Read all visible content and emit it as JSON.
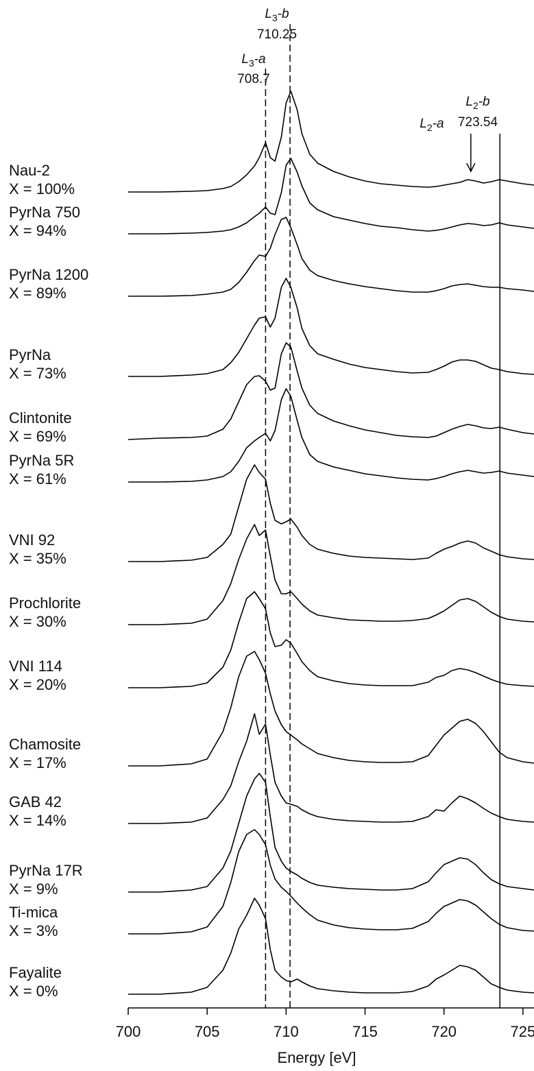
{
  "chart_data": {
    "type": "line",
    "x_label": "Energy [eV]",
    "xlim": [
      700,
      725.7
    ],
    "xticks": [
      700,
      705,
      710,
      715,
      720,
      725
    ],
    "color": "#000000",
    "x": [
      700,
      702,
      704,
      705,
      706,
      706.5,
      707,
      707.5,
      708,
      708.3,
      708.7,
      709,
      709.3,
      709.7,
      710,
      710.3,
      710.7,
      711,
      711.5,
      712,
      713,
      714,
      715,
      716,
      717,
      718,
      719,
      719.5,
      720,
      720.5,
      721,
      721.5,
      722,
      722.5,
      723,
      723.5,
      724,
      725,
      725.7
    ],
    "reference_lines": [
      {
        "label": {
          "base": "L",
          "sub": "3",
          "suffix": "-a"
        },
        "value": 708.7,
        "style": "dashed"
      },
      {
        "label": {
          "base": "L",
          "sub": "3",
          "suffix": "-b"
        },
        "value": 710.25,
        "style": "dashed"
      },
      {
        "label": {
          "base": "L",
          "sub": "2",
          "suffix": "-a"
        },
        "value": 721.7,
        "style": "arrow"
      },
      {
        "label": {
          "base": "L",
          "sub": "2",
          "suffix": "-b"
        },
        "value": 723.54,
        "style": "solid"
      }
    ],
    "series": [
      {
        "name": "Nau-2",
        "composition": "X = 100%",
        "values": [
          0,
          0,
          0.01,
          0.02,
          0.05,
          0.08,
          0.15,
          0.25,
          0.38,
          0.5,
          0.72,
          0.5,
          0.45,
          0.8,
          1.3,
          1.47,
          1.2,
          0.85,
          0.55,
          0.42,
          0.3,
          0.22,
          0.16,
          0.12,
          0.1,
          0.08,
          0.07,
          0.08,
          0.1,
          0.12,
          0.14,
          0.18,
          0.16,
          0.13,
          0.15,
          0.18,
          0.16,
          0.12,
          0.1
        ]
      },
      {
        "name": "PyrNa 750",
        "composition": "X = 94%",
        "values": [
          0,
          0,
          0.01,
          0.02,
          0.04,
          0.06,
          0.1,
          0.16,
          0.25,
          0.3,
          0.39,
          0.3,
          0.28,
          0.6,
          1.0,
          1.1,
          0.9,
          0.7,
          0.45,
          0.35,
          0.25,
          0.2,
          0.15,
          0.11,
          0.09,
          0.06,
          0.04,
          0.05,
          0.07,
          0.1,
          0.13,
          0.15,
          0.14,
          0.12,
          0.13,
          0.16,
          0.13,
          0.1,
          0.08
        ]
      },
      {
        "name": "PyrNa 1200",
        "composition": "X = 89%",
        "values": [
          0,
          0,
          0.01,
          0.03,
          0.06,
          0.1,
          0.2,
          0.35,
          0.52,
          0.6,
          0.58,
          0.7,
          0.9,
          1.12,
          1.15,
          1.0,
          0.75,
          0.55,
          0.38,
          0.3,
          0.23,
          0.18,
          0.14,
          0.11,
          0.08,
          0.06,
          0.06,
          0.08,
          0.11,
          0.15,
          0.17,
          0.18,
          0.16,
          0.14,
          0.13,
          0.13,
          0.11,
          0.09,
          0.07
        ]
      },
      {
        "name": "PyrNa",
        "composition": "X = 73%",
        "values": [
          0,
          0,
          0.02,
          0.04,
          0.1,
          0.2,
          0.35,
          0.55,
          0.75,
          0.85,
          0.87,
          0.72,
          0.85,
          1.3,
          1.43,
          1.3,
          1.0,
          0.7,
          0.45,
          0.33,
          0.25,
          0.18,
          0.13,
          0.1,
          0.07,
          0.05,
          0.06,
          0.1,
          0.15,
          0.21,
          0.24,
          0.24,
          0.22,
          0.17,
          0.12,
          0.1,
          0.07,
          0.04,
          0.03
        ]
      },
      {
        "name": "Clintonite",
        "composition": "X = 69%",
        "values": [
          0,
          0.02,
          0.03,
          0.05,
          0.15,
          0.3,
          0.55,
          0.8,
          0.92,
          0.93,
          0.85,
          0.72,
          0.75,
          1.25,
          1.41,
          1.35,
          1.0,
          0.75,
          0.5,
          0.38,
          0.27,
          0.2,
          0.14,
          0.1,
          0.06,
          0.04,
          0.03,
          0.05,
          0.1,
          0.15,
          0.19,
          0.22,
          0.2,
          0.17,
          0.16,
          0.18,
          0.15,
          0.1,
          0.08
        ]
      },
      {
        "name": "PyrNa 5R",
        "composition": "X = 61%",
        "values": [
          0,
          0,
          0.01,
          0.03,
          0.08,
          0.15,
          0.3,
          0.5,
          0.6,
          0.65,
          0.71,
          0.6,
          0.75,
          1.2,
          1.36,
          1.25,
          0.9,
          0.65,
          0.4,
          0.3,
          0.22,
          0.17,
          0.12,
          0.09,
          0.06,
          0.04,
          0.03,
          0.05,
          0.08,
          0.12,
          0.15,
          0.17,
          0.15,
          0.13,
          0.14,
          0.16,
          0.13,
          0.1,
          0.08
        ]
      },
      {
        "name": "VNI 92",
        "composition": "X = 35%",
        "values": [
          0,
          0,
          0.02,
          0.06,
          0.25,
          0.4,
          0.8,
          1.2,
          1.41,
          1.3,
          1.2,
          0.85,
          0.6,
          0.55,
          0.58,
          0.62,
          0.5,
          0.38,
          0.25,
          0.18,
          0.12,
          0.08,
          0.06,
          0.05,
          0.04,
          0.03,
          0.05,
          0.12,
          0.18,
          0.22,
          0.27,
          0.3,
          0.27,
          0.2,
          0.15,
          0.1,
          0.07,
          0.04,
          0.03
        ]
      },
      {
        "name": "Prochlorite",
        "composition": "X = 30%",
        "values": [
          0,
          0,
          0.02,
          0.08,
          0.35,
          0.6,
          0.95,
          1.25,
          1.46,
          1.3,
          1.38,
          1.0,
          0.65,
          0.45,
          0.45,
          0.48,
          0.38,
          0.3,
          0.2,
          0.14,
          0.1,
          0.07,
          0.06,
          0.05,
          0.05,
          0.06,
          0.09,
          0.14,
          0.2,
          0.28,
          0.36,
          0.38,
          0.34,
          0.26,
          0.18,
          0.12,
          0.08,
          0.05,
          0.04
        ]
      },
      {
        "name": "VNI 114",
        "composition": "X = 20%",
        "values": [
          0,
          0,
          0.02,
          0.07,
          0.3,
          0.55,
          0.95,
          1.3,
          1.4,
          1.3,
          1.15,
          0.8,
          0.6,
          0.62,
          0.7,
          0.65,
          0.5,
          0.38,
          0.25,
          0.16,
          0.1,
          0.06,
          0.04,
          0.03,
          0.03,
          0.03,
          0.08,
          0.15,
          0.18,
          0.25,
          0.28,
          0.26,
          0.22,
          0.17,
          0.12,
          0.08,
          0.05,
          0.03,
          0.02
        ]
      },
      {
        "name": "Chamosite",
        "composition": "X = 17%",
        "values": [
          0,
          0,
          0.03,
          0.1,
          0.5,
          0.85,
          1.3,
          1.6,
          1.67,
          1.55,
          1.35,
          1.05,
          0.8,
          0.6,
          0.5,
          0.45,
          0.38,
          0.32,
          0.25,
          0.18,
          0.12,
          0.08,
          0.06,
          0.05,
          0.05,
          0.06,
          0.15,
          0.3,
          0.45,
          0.55,
          0.65,
          0.68,
          0.62,
          0.5,
          0.35,
          0.2,
          0.12,
          0.06,
          0.04
        ]
      },
      {
        "name": "GAB 42",
        "composition": "X = 14%",
        "values": [
          0,
          0,
          0.02,
          0.08,
          0.35,
          0.55,
          0.9,
          1.2,
          1.6,
          1.3,
          1.45,
          1.0,
          0.6,
          0.4,
          0.3,
          0.28,
          0.25,
          0.2,
          0.14,
          0.1,
          0.06,
          0.04,
          0.03,
          0.02,
          0.02,
          0.03,
          0.1,
          0.2,
          0.18,
          0.3,
          0.4,
          0.36,
          0.3,
          0.22,
          0.15,
          0.1,
          0.06,
          0.03,
          0.02
        ]
      },
      {
        "name": "PyrNa 17R",
        "composition": "X = 9%",
        "values": [
          0,
          0,
          0.03,
          0.08,
          0.35,
          0.6,
          1.0,
          1.4,
          1.65,
          1.73,
          1.6,
          1.1,
          0.65,
          0.45,
          0.35,
          0.3,
          0.25,
          0.2,
          0.14,
          0.1,
          0.07,
          0.05,
          0.04,
          0.03,
          0.03,
          0.05,
          0.15,
          0.28,
          0.4,
          0.45,
          0.5,
          0.48,
          0.4,
          0.28,
          0.18,
          0.12,
          0.08,
          0.05,
          0.03
        ]
      },
      {
        "name": "Ti-mica",
        "composition": "X = 3%",
        "values": [
          0,
          0,
          0.03,
          0.1,
          0.4,
          0.75,
          1.2,
          1.45,
          1.52,
          1.45,
          1.3,
          1.0,
          0.8,
          0.68,
          0.62,
          0.55,
          0.45,
          0.38,
          0.28,
          0.2,
          0.13,
          0.09,
          0.07,
          0.06,
          0.06,
          0.08,
          0.18,
          0.3,
          0.4,
          0.45,
          0.5,
          0.48,
          0.42,
          0.32,
          0.22,
          0.14,
          0.09,
          0.05,
          0.04
        ]
      },
      {
        "name": "Fayalite",
        "composition": "X = 0%",
        "values": [
          0,
          0,
          0.03,
          0.1,
          0.35,
          0.6,
          0.95,
          1.15,
          1.4,
          1.3,
          1.1,
          0.65,
          0.35,
          0.25,
          0.2,
          0.18,
          0.22,
          0.18,
          0.12,
          0.08,
          0.05,
          0.03,
          0.02,
          0.02,
          0.02,
          0.04,
          0.12,
          0.22,
          0.28,
          0.35,
          0.42,
          0.4,
          0.35,
          0.25,
          0.15,
          0.1,
          0.06,
          0.03,
          0.02
        ]
      }
    ]
  }
}
